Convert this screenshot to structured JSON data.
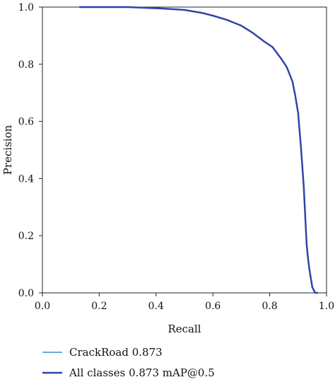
{
  "chart_data": {
    "type": "line",
    "title": "",
    "xlabel": "Recall",
    "ylabel": "Precision",
    "xlim": [
      0.0,
      1.0
    ],
    "ylim": [
      0.0,
      1.0
    ],
    "xticks": [
      0.0,
      0.2,
      0.4,
      0.6,
      0.8,
      1.0
    ],
    "yticks": [
      0.0,
      0.2,
      0.4,
      0.6,
      0.8,
      1.0
    ],
    "xtick_labels": [
      "0.0",
      "0.2",
      "0.4",
      "0.6",
      "0.8",
      "1.0"
    ],
    "ytick_labels": [
      "0.0",
      "0.2",
      "0.4",
      "0.6",
      "0.8",
      "1.0"
    ],
    "grid": false,
    "legend_position": "bottom-left, below plot",
    "series": [
      {
        "name": "CrackRoad 0.873",
        "color": "#3a8ad6",
        "x": [
          0.13,
          0.3,
          0.42,
          0.5,
          0.56,
          0.6,
          0.65,
          0.7,
          0.74,
          0.78,
          0.81,
          0.84,
          0.86,
          0.88,
          0.89,
          0.9,
          0.905,
          0.91,
          0.915,
          0.92,
          0.925,
          0.93,
          0.935,
          0.94,
          0.95,
          0.96,
          0.97
        ],
        "y": [
          1.0,
          1.0,
          0.995,
          0.99,
          0.98,
          0.97,
          0.955,
          0.935,
          0.91,
          0.88,
          0.86,
          0.82,
          0.79,
          0.74,
          0.69,
          0.63,
          0.57,
          0.51,
          0.44,
          0.37,
          0.27,
          0.17,
          0.12,
          0.08,
          0.02,
          0.0,
          0.0
        ]
      },
      {
        "name": "All classes 0.873 mAP@0.5",
        "color": "#2f45a8",
        "x": [
          0.13,
          0.3,
          0.42,
          0.5,
          0.56,
          0.6,
          0.65,
          0.7,
          0.74,
          0.78,
          0.81,
          0.84,
          0.86,
          0.88,
          0.89,
          0.9,
          0.905,
          0.91,
          0.915,
          0.92,
          0.925,
          0.93,
          0.935,
          0.94,
          0.95,
          0.96,
          0.97
        ],
        "y": [
          1.0,
          1.0,
          0.995,
          0.99,
          0.98,
          0.97,
          0.955,
          0.935,
          0.91,
          0.88,
          0.86,
          0.82,
          0.79,
          0.74,
          0.69,
          0.63,
          0.57,
          0.51,
          0.44,
          0.37,
          0.27,
          0.17,
          0.12,
          0.08,
          0.02,
          0.0,
          0.0
        ]
      }
    ]
  }
}
